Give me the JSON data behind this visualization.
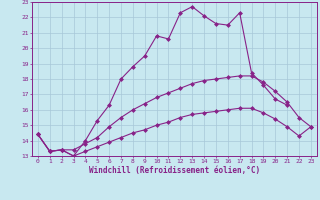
{
  "xlabel": "Windchill (Refroidissement éolien,°C)",
  "x_values": [
    0,
    1,
    2,
    3,
    4,
    5,
    6,
    7,
    8,
    9,
    10,
    11,
    12,
    13,
    14,
    15,
    16,
    17,
    18,
    19,
    20,
    21,
    22,
    23
  ],
  "line1": [
    14.4,
    13.3,
    13.4,
    13.0,
    14.0,
    15.3,
    16.3,
    18.0,
    18.8,
    19.5,
    20.8,
    20.6,
    22.3,
    22.7,
    22.1,
    21.6,
    21.5,
    22.3,
    18.4,
    17.6,
    16.7,
    16.3,
    null,
    null
  ],
  "line2": [
    14.4,
    13.3,
    13.4,
    13.4,
    13.8,
    14.2,
    14.9,
    15.5,
    16.0,
    16.4,
    16.8,
    17.1,
    17.4,
    17.7,
    17.9,
    18.0,
    18.1,
    18.2,
    18.2,
    17.8,
    17.2,
    16.5,
    15.5,
    14.9
  ],
  "line3": [
    14.4,
    13.3,
    13.4,
    13.0,
    13.3,
    13.6,
    13.9,
    14.2,
    14.5,
    14.7,
    15.0,
    15.2,
    15.5,
    15.7,
    15.8,
    15.9,
    16.0,
    16.1,
    16.1,
    15.8,
    15.4,
    14.9,
    14.3,
    14.9
  ],
  "ylim": [
    13,
    23
  ],
  "xlim": [
    -0.5,
    23.5
  ],
  "yticks": [
    13,
    14,
    15,
    16,
    17,
    18,
    19,
    20,
    21,
    22,
    23
  ],
  "xticks": [
    0,
    1,
    2,
    3,
    4,
    5,
    6,
    7,
    8,
    9,
    10,
    11,
    12,
    13,
    14,
    15,
    16,
    17,
    18,
    19,
    20,
    21,
    22,
    23
  ],
  "line_color": "#882288",
  "bg_color": "#c8e8f0",
  "grid_color": "#a8c8d8",
  "text_color": "#882288",
  "markersize": 2.5
}
